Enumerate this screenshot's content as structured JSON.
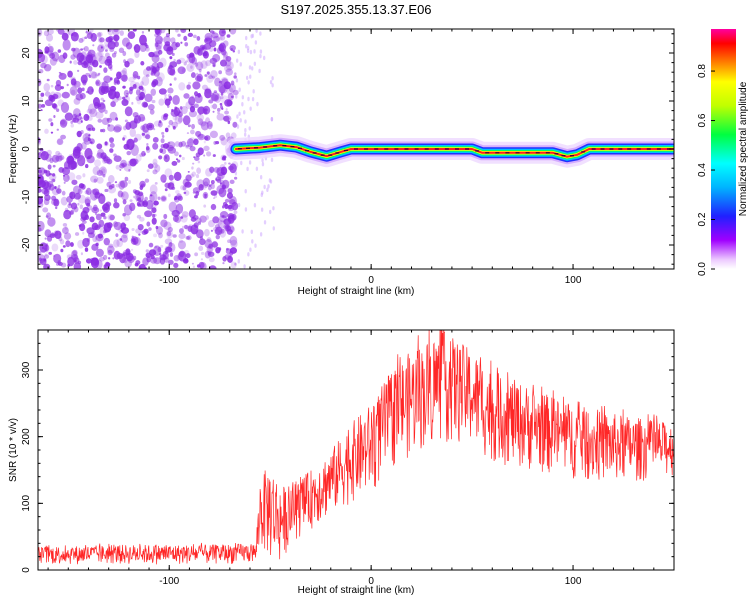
{
  "figure": {
    "title": "S197.2025.355.13.37.E06"
  },
  "colors": {
    "signal_line": "#ff0000",
    "speckle": "#8a2be2",
    "axis": "#000000",
    "background": "#ffffff"
  },
  "chart_data": [
    {
      "type": "heatmap",
      "name": "spectrogram",
      "xlabel": "Height of straight line (km)",
      "ylabel": "Frequency (Hz)",
      "xlim": [
        -165,
        150
      ],
      "ylim": [
        -25,
        25
      ],
      "xticks": [
        -100,
        0,
        100
      ],
      "xtick_labels": [
        "-100",
        "0",
        "100"
      ],
      "yticks": [
        -20,
        -10,
        0,
        10,
        20
      ],
      "ytick_labels": [
        "-20",
        "-10",
        "0",
        "10",
        "20"
      ],
      "noise_region_x": [
        -165,
        -67
      ],
      "ridge": [
        {
          "x": -67,
          "y": 0.0
        },
        {
          "x": -55,
          "y": 0.3
        },
        {
          "x": -45,
          "y": 0.8
        },
        {
          "x": -37,
          "y": 0.4
        },
        {
          "x": -30,
          "y": -0.6
        },
        {
          "x": -22,
          "y": -1.5
        },
        {
          "x": -15,
          "y": -0.6
        },
        {
          "x": -10,
          "y": 0.0
        },
        {
          "x": 0,
          "y": 0.0
        },
        {
          "x": 20,
          "y": 0.0
        },
        {
          "x": 40,
          "y": 0.0
        },
        {
          "x": 50,
          "y": 0.0
        },
        {
          "x": 55,
          "y": -0.8
        },
        {
          "x": 70,
          "y": -0.8
        },
        {
          "x": 90,
          "y": -0.8
        },
        {
          "x": 97,
          "y": -1.6
        },
        {
          "x": 102,
          "y": -1.2
        },
        {
          "x": 108,
          "y": 0.0
        },
        {
          "x": 130,
          "y": 0.0
        },
        {
          "x": 150,
          "y": 0.0
        }
      ],
      "colorbar": {
        "label": "Normalized spectral amplitude",
        "ticks": [
          0.0,
          0.2,
          0.4,
          0.6,
          0.8
        ],
        "tick_labels": [
          "0.0",
          "0.2",
          "0.4",
          "0.6",
          "0.8"
        ],
        "range": [
          0.0,
          0.97
        ]
      }
    },
    {
      "type": "line",
      "name": "snr",
      "xlabel": "Height of straight line (km)",
      "ylabel": "SNR (10 * v/v)",
      "xlim": [
        -165,
        150
      ],
      "ylim": [
        0,
        360
      ],
      "xticks": [
        -100,
        0,
        100
      ],
      "xtick_labels": [
        "-100",
        "0",
        "100"
      ],
      "yticks": [
        0,
        100,
        200,
        300
      ],
      "ytick_labels": [
        "0",
        "100",
        "200",
        "300"
      ],
      "envelope": [
        {
          "x": -165,
          "low": 8,
          "high": 35
        },
        {
          "x": -120,
          "low": 8,
          "high": 38
        },
        {
          "x": -80,
          "low": 8,
          "high": 38
        },
        {
          "x": -57,
          "low": 10,
          "high": 40
        },
        {
          "x": -55,
          "low": 30,
          "high": 140
        },
        {
          "x": -50,
          "low": 10,
          "high": 160
        },
        {
          "x": -45,
          "low": 5,
          "high": 130
        },
        {
          "x": -40,
          "low": 40,
          "high": 120
        },
        {
          "x": -30,
          "low": 60,
          "high": 150
        },
        {
          "x": -20,
          "low": 80,
          "high": 180
        },
        {
          "x": -10,
          "low": 100,
          "high": 220
        },
        {
          "x": 0,
          "low": 110,
          "high": 250
        },
        {
          "x": 10,
          "low": 150,
          "high": 300
        },
        {
          "x": 20,
          "low": 170,
          "high": 330
        },
        {
          "x": 35,
          "low": 190,
          "high": 360
        },
        {
          "x": 50,
          "low": 180,
          "high": 330
        },
        {
          "x": 60,
          "low": 160,
          "high": 300
        },
        {
          "x": 75,
          "low": 150,
          "high": 280
        },
        {
          "x": 90,
          "low": 140,
          "high": 260
        },
        {
          "x": 110,
          "low": 130,
          "high": 240
        },
        {
          "x": 130,
          "low": 130,
          "high": 230
        },
        {
          "x": 150,
          "low": 140,
          "high": 220
        }
      ]
    }
  ]
}
